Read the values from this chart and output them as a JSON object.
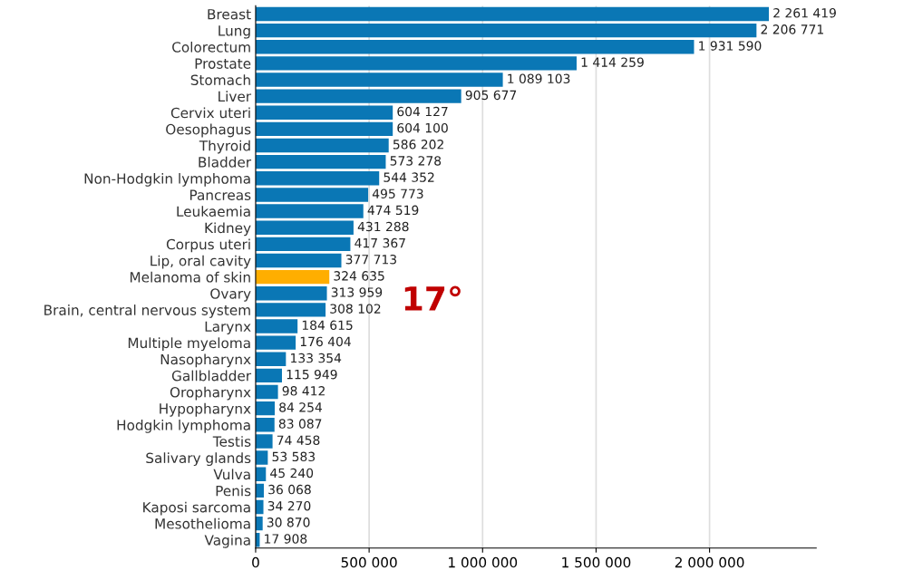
{
  "chart_data": {
    "type": "bar",
    "orientation": "horizontal",
    "categories": [
      "Breast",
      "Lung",
      "Colorectum",
      "Prostate",
      "Stomach",
      "Liver",
      "Cervix uteri",
      "Oesophagus",
      "Thyroid",
      "Bladder",
      "Non-Hodgkin lymphoma",
      "Pancreas",
      "Leukaemia",
      "Kidney",
      "Corpus uteri",
      "Lip, oral cavity",
      "Melanoma of skin",
      "Ovary",
      "Brain, central nervous system",
      "Larynx",
      "Multiple myeloma",
      "Nasopharynx",
      "Gallbladder",
      "Oropharynx",
      "Hypopharynx",
      "Hodgkin lymphoma",
      "Testis",
      "Salivary glands",
      "Vulva",
      "Penis",
      "Kaposi sarcoma",
      "Mesothelioma",
      "Vagina"
    ],
    "values": [
      2261419,
      2206771,
      1931590,
      1414259,
      1089103,
      905677,
      604127,
      604100,
      586202,
      573278,
      544352,
      495773,
      474519,
      431288,
      417367,
      377713,
      324635,
      313959,
      308102,
      184615,
      176404,
      133354,
      115949,
      98412,
      84254,
      83087,
      74458,
      53583,
      45240,
      36068,
      34270,
      30870,
      17908
    ],
    "value_labels": [
      "2 261 419",
      "2 206 771",
      "1 931 590",
      "1 414 259",
      "1 089 103",
      "905 677",
      "604 127",
      "604 100",
      "586 202",
      "573 278",
      "544 352",
      "495 773",
      "474 519",
      "431 288",
      "417 367",
      "377 713",
      "324 635",
      "313 959",
      "308 102",
      "184 615",
      "176 404",
      "133 354",
      "115 949",
      "98 412",
      "84 254",
      "83 087",
      "74 458",
      "53 583",
      "45 240",
      "36 068",
      "34 270",
      "30 870",
      "17 908"
    ],
    "colors": [
      "#0a77b5",
      "#0a77b5",
      "#0a77b5",
      "#0a77b5",
      "#0a77b5",
      "#0a77b5",
      "#0a77b5",
      "#0a77b5",
      "#0a77b5",
      "#0a77b5",
      "#0a77b5",
      "#0a77b5",
      "#0a77b5",
      "#0a77b5",
      "#0a77b5",
      "#0a77b5",
      "#ffae00",
      "#0a77b5",
      "#0a77b5",
      "#0a77b5",
      "#0a77b5",
      "#0a77b5",
      "#0a77b5",
      "#0a77b5",
      "#0a77b5",
      "#0a77b5",
      "#0a77b5",
      "#0a77b5",
      "#0a77b5",
      "#0a77b5",
      "#0a77b5",
      "#0a77b5",
      "#0a77b5"
    ],
    "xlim": [
      0,
      2470000
    ],
    "xticks": [
      {
        "value": 0,
        "label": "0"
      },
      {
        "value": 500000,
        "label": "500 000"
      },
      {
        "value": 1000000,
        "label": "1 000 000"
      },
      {
        "value": 1500000,
        "label": "1 500 000"
      },
      {
        "value": 2000000,
        "label": "2 000 000"
      }
    ],
    "grid": "x",
    "annotations": [
      "17°"
    ]
  }
}
